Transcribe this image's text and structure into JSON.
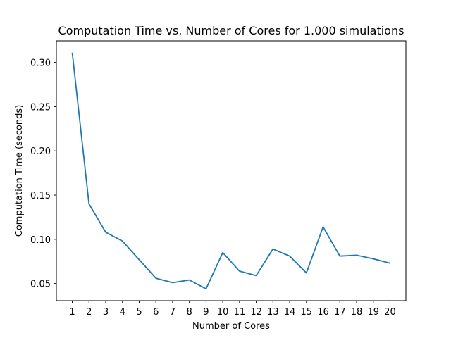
{
  "chart_data": {
    "type": "line",
    "title": "Computation Time vs. Number of Cores for 1.000 simulations",
    "xlabel": "Number of Cores",
    "ylabel": "Computation Time (seconds)",
    "x": [
      1,
      2,
      3,
      4,
      5,
      6,
      7,
      8,
      9,
      10,
      11,
      12,
      13,
      14,
      15,
      16,
      17,
      18,
      19,
      20
    ],
    "series": [
      {
        "values": [
          0.311,
          0.14,
          0.108,
          0.098,
          0.077,
          0.056,
          0.051,
          0.054,
          0.044,
          0.085,
          0.064,
          0.059,
          0.089,
          0.081,
          0.062,
          0.114,
          0.081,
          0.082,
          0.078,
          0.073
        ],
        "color": "#1f77b4"
      }
    ],
    "xlim": [
      0.05,
      20.95
    ],
    "ylim": [
      0.0306,
      0.3244
    ],
    "xticks": [
      "1",
      "2",
      "3",
      "4",
      "5",
      "6",
      "7",
      "8",
      "9",
      "10",
      "11",
      "12",
      "13",
      "14",
      "15",
      "16",
      "17",
      "18",
      "19",
      "20"
    ],
    "yticks": [
      0.05,
      0.1,
      0.15,
      0.2,
      0.25,
      0.3
    ],
    "ytick_labels": [
      "0.05",
      "0.10",
      "0.15",
      "0.20",
      "0.25",
      "0.30"
    ],
    "grid": false
  }
}
